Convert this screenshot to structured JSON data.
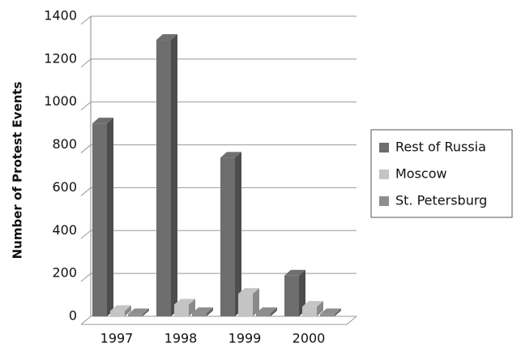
{
  "chart_data": {
    "type": "bar3d",
    "y_label": "Number of Protest Events",
    "categories": [
      "1997",
      "1998",
      "1999",
      "2000"
    ],
    "series": [
      {
        "name": "Rest of Russia",
        "color": "#6e6e6e",
        "values": [
          900,
          1290,
          740,
          190
        ]
      },
      {
        "name": "Moscow",
        "color": "#c4c4c4",
        "values": [
          25,
          55,
          105,
          45
        ]
      },
      {
        "name": "St. Petersburg",
        "color": "#8e8e8e",
        "values": [
          10,
          15,
          15,
          10
        ]
      }
    ],
    "ylim": [
      0,
      1400
    ],
    "yticks": [
      0,
      200,
      400,
      600,
      800,
      1000,
      1200,
      1400
    ],
    "grid": true,
    "legend": "right"
  }
}
